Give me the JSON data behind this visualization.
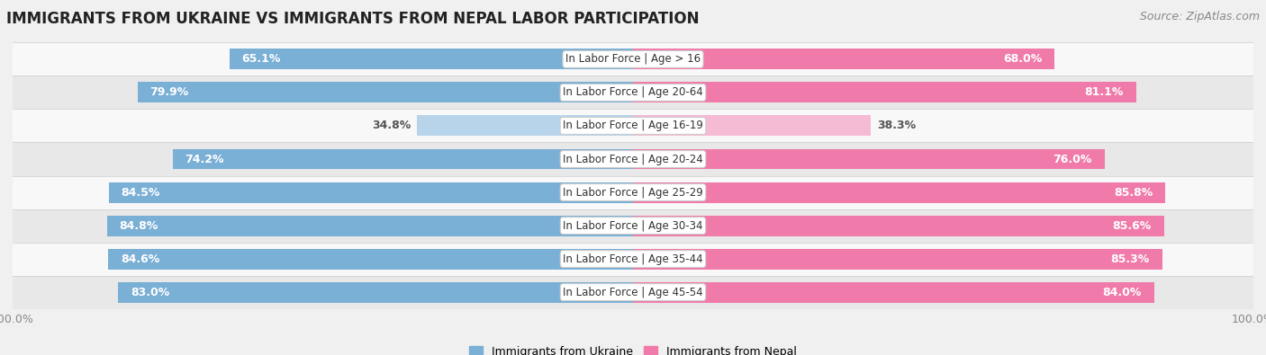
{
  "title": "IMMIGRANTS FROM UKRAINE VS IMMIGRANTS FROM NEPAL LABOR PARTICIPATION",
  "source": "Source: ZipAtlas.com",
  "categories": [
    "In Labor Force | Age > 16",
    "In Labor Force | Age 20-64",
    "In Labor Force | Age 16-19",
    "In Labor Force | Age 20-24",
    "In Labor Force | Age 25-29",
    "In Labor Force | Age 30-34",
    "In Labor Force | Age 35-44",
    "In Labor Force | Age 45-54"
  ],
  "ukraine_values": [
    65.1,
    79.9,
    34.8,
    74.2,
    84.5,
    84.8,
    84.6,
    83.0
  ],
  "nepal_values": [
    68.0,
    81.1,
    38.3,
    76.0,
    85.8,
    85.6,
    85.3,
    84.0
  ],
  "ukraine_color_strong": "#7aafd6",
  "ukraine_color_light": "#b8d4eb",
  "nepal_color_strong": "#f07baa",
  "nepal_color_light": "#f5bbd4",
  "threshold": 50,
  "bar_height": 0.62,
  "background_color": "#f0f0f0",
  "row_bg_even": "#f8f8f8",
  "row_bg_odd": "#e8e8e8",
  "legend_ukraine": "Immigrants from Ukraine",
  "legend_nepal": "Immigrants from Nepal",
  "title_fontsize": 12,
  "source_fontsize": 9,
  "value_fontsize": 9,
  "category_fontsize": 8.5,
  "axis_label_fontsize": 9
}
